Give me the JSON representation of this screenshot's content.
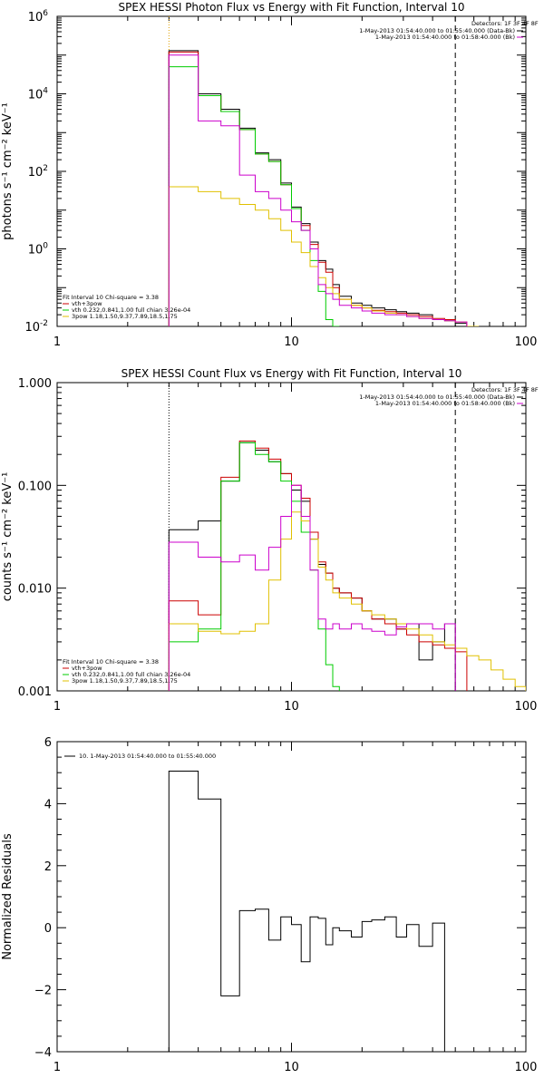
{
  "chart_data": [
    {
      "type": "line",
      "title": "SPEX HESSI Photon Flux vs Energy with Fit Function, Interval 10",
      "xlabel": "",
      "ylabel": "photons s⁻¹ cm⁻² keV⁻¹",
      "xscale": "log",
      "yscale": "log",
      "xlim": [
        1,
        100
      ],
      "ylim": [
        0.01,
        1000000
      ],
      "xticks": [
        {
          "v": 1,
          "label": "1"
        },
        {
          "v": 10,
          "label": "10"
        },
        {
          "v": 100,
          "label": "100"
        }
      ],
      "yticks": [
        {
          "v": 0.01,
          "base": "10",
          "exp": "-2"
        },
        {
          "v": 1,
          "base": "10",
          "exp": "0"
        },
        {
          "v": 100,
          "base": "10",
          "exp": "2"
        },
        {
          "v": 10000,
          "base": "10",
          "exp": "4"
        },
        {
          "v": 1000000,
          "base": "10",
          "exp": "6"
        }
      ],
      "vlines": [
        {
          "x": 3,
          "style": "dotted",
          "color": "#e0a000"
        },
        {
          "x": 50,
          "style": "dashed",
          "color": "#000000"
        }
      ],
      "detectors": "Detectors: 1F 3F 4F 8F",
      "time_labels": [
        {
          "text": "1-May-2013 01:54:40.000 to 01:55:40.000 (Data-Bk)",
          "color": "#000000"
        },
        {
          "text": "1-May-2013 01:54:40.000 to 01:58:40.000 (Bk)",
          "color": "#cc00cc"
        }
      ],
      "fit_info": [
        "Fit Interval 10   Chi-square = 3.38",
        "vth+3pow",
        "vth 0.232,0.841,1.00  full chian 3.26e-04",
        "3pow 1.18,1.50,9.37,7.89,18.5,1.75"
      ],
      "fit_colors": [
        "#000000",
        "#cc0000",
        "#00cc00",
        "#e0c000"
      ],
      "edges": [
        3,
        4,
        5,
        6,
        7,
        8,
        9,
        10,
        11,
        12,
        13,
        14,
        15,
        16,
        18,
        20,
        22,
        25,
        28,
        31,
        35,
        40,
        45,
        50,
        56,
        63
      ],
      "series": [
        {
          "name": "data",
          "color": "#000000",
          "values": [
            130000,
            10000,
            4000,
            1300,
            300,
            200,
            50,
            12,
            4.5,
            1.5,
            0.5,
            0.3,
            0.12,
            0.06,
            0.04,
            0.035,
            0.03,
            0.027,
            0.024,
            0.022,
            0.02,
            0.015,
            0.014,
            0.012,
            null
          ]
        },
        {
          "name": "vth+3pow",
          "color": "#cc0000",
          "values": [
            120000,
            9000,
            3500,
            1200,
            280,
            180,
            45,
            11,
            4,
            1.3,
            0.45,
            0.25,
            0.1,
            0.05,
            0.035,
            0.03,
            0.026,
            0.024,
            0.022,
            0.02,
            0.018,
            0.016,
            0.015,
            0.013,
            0.01
          ]
        },
        {
          "name": "vth",
          "color": "#00cc00",
          "values": [
            50000,
            9000,
            3500,
            1200,
            280,
            180,
            45,
            11,
            3,
            0.5,
            0.08,
            0.015,
            0.008,
            null,
            null,
            null,
            null,
            null,
            null,
            null,
            null,
            null,
            null,
            null,
            null
          ]
        },
        {
          "name": "3pow",
          "color": "#e0c000",
          "values": [
            40,
            30,
            20,
            14,
            10,
            6,
            3,
            1.5,
            0.8,
            0.35,
            0.18,
            0.1,
            0.07,
            0.05,
            0.035,
            0.03,
            0.025,
            0.022,
            0.02,
            0.018,
            0.016,
            0.015,
            0.014,
            0.013,
            0.01
          ]
        },
        {
          "name": "bk",
          "color": "#cc00cc",
          "values": [
            100000,
            2000,
            1500,
            80,
            30,
            20,
            10,
            5,
            3,
            1,
            0.12,
            0.07,
            0.05,
            0.035,
            0.03,
            0.025,
            0.022,
            0.02,
            0.02,
            0.018,
            0.016,
            0.015,
            0.014,
            0.013,
            null
          ]
        }
      ]
    },
    {
      "type": "line",
      "title": "SPEX HESSI Count Flux vs Energy with Fit Function, Interval 10",
      "xlabel": "",
      "ylabel": "counts s⁻¹ cm⁻² keV⁻¹",
      "xscale": "log",
      "yscale": "log",
      "xlim": [
        1,
        100
      ],
      "ylim": [
        0.001,
        1
      ],
      "xticks": [
        {
          "v": 1,
          "label": "1"
        },
        {
          "v": 10,
          "label": "10"
        },
        {
          "v": 100,
          "label": "100"
        }
      ],
      "yticks": [
        {
          "v": 1,
          "label": "1.000"
        },
        {
          "v": 0.1,
          "label": "0.100"
        },
        {
          "v": 0.01,
          "label": "0.010"
        },
        {
          "v": 0.001,
          "label": "0.001"
        }
      ],
      "vlines": [
        {
          "x": 3,
          "style": "dotted",
          "color": "#000000"
        },
        {
          "x": 50,
          "style": "dashed",
          "color": "#000000"
        }
      ],
      "detectors": "Detectors: 1F 3F 4F 8F",
      "time_labels": [
        {
          "text": "1-May-2013 01:54:40.000 to 01:55:40.000 (Data-Bk)",
          "color": "#000000"
        },
        {
          "text": "1-May-2013 01:54:40.000 to 01:58:40.000 (Bk)",
          "color": "#cc00cc"
        }
      ],
      "fit_info": [
        "Fit Interval 10   Chi-square = 3.38",
        "vth+3pow",
        "vth 0.232,0.841,1.00  full chian 3.26e-04",
        "3pow 1.18,1.50,9.37,7.89,18.5,1.75"
      ],
      "fit_colors": [
        "#000000",
        "#cc0000",
        "#00cc00",
        "#e0c000"
      ],
      "edges": [
        3,
        4,
        5,
        6,
        7,
        8,
        9,
        10,
        11,
        12,
        13,
        14,
        15,
        16,
        18,
        20,
        22,
        25,
        28,
        31,
        35,
        40,
        45,
        50,
        56,
        63,
        71,
        80,
        90,
        100
      ],
      "series": [
        {
          "name": "data",
          "color": "#000000",
          "values": [
            0.037,
            0.045,
            0.11,
            0.26,
            0.22,
            0.17,
            0.13,
            0.09,
            0.07,
            0.03,
            0.017,
            0.014,
            0.01,
            0.009,
            0.008,
            0.006,
            0.005,
            0.005,
            0.004,
            0.0045,
            0.002,
            0.003,
            0.0045,
            null,
            null,
            null,
            null,
            null,
            null
          ]
        },
        {
          "name": "vth+3pow",
          "color": "#cc0000",
          "values": [
            0.0075,
            0.0055,
            0.12,
            0.27,
            0.23,
            0.18,
            0.13,
            0.1,
            0.075,
            0.035,
            0.018,
            0.014,
            0.01,
            0.009,
            0.008,
            0.006,
            0.005,
            0.0045,
            0.004,
            0.0035,
            0.003,
            0.0028,
            0.0026,
            0.0024,
            null,
            null,
            null,
            null,
            null
          ]
        },
        {
          "name": "vth",
          "color": "#00cc00",
          "values": [
            0.003,
            0.004,
            0.11,
            0.26,
            0.2,
            0.17,
            0.11,
            0.07,
            0.035,
            0.015,
            0.004,
            0.0018,
            0.0011,
            null,
            null,
            null,
            null,
            null,
            null,
            null,
            null,
            null,
            null,
            null,
            null,
            null,
            null,
            null,
            null
          ]
        },
        {
          "name": "3pow",
          "color": "#e0c000",
          "values": [
            0.0045,
            0.0038,
            0.0036,
            0.0038,
            0.0045,
            0.012,
            0.03,
            0.055,
            0.045,
            0.03,
            0.016,
            0.012,
            0.009,
            0.008,
            0.007,
            0.006,
            0.0055,
            0.005,
            0.0045,
            0.004,
            0.0035,
            0.003,
            0.0028,
            0.0026,
            0.0022,
            0.002,
            0.0016,
            0.0013,
            0.0011
          ]
        },
        {
          "name": "bk",
          "color": "#cc00cc",
          "values": [
            0.028,
            0.02,
            0.018,
            0.021,
            0.015,
            0.025,
            0.05,
            0.1,
            0.05,
            0.015,
            0.005,
            0.004,
            0.0045,
            0.004,
            0.0045,
            0.004,
            0.0038,
            0.0035,
            0.0042,
            0.0045,
            0.0045,
            0.004,
            0.0045,
            null,
            null,
            null,
            null,
            null,
            null
          ]
        }
      ]
    },
    {
      "type": "line",
      "title": "",
      "xlabel": "",
      "ylabel": "Normalized Residuals",
      "xscale": "log",
      "yscale": "linear",
      "xlim": [
        1,
        100
      ],
      "ylim": [
        -4,
        6
      ],
      "xticks": [
        {
          "v": 1,
          "label": "1"
        },
        {
          "v": 10,
          "label": "10"
        },
        {
          "v": 100,
          "label": "100"
        }
      ],
      "yticks": [
        {
          "v": 6,
          "label": "6"
        },
        {
          "v": 4,
          "label": "4"
        },
        {
          "v": 2,
          "label": "2"
        },
        {
          "v": 0,
          "label": "0"
        },
        {
          "v": -2,
          "label": "−2"
        },
        {
          "v": -4,
          "label": "−4"
        }
      ],
      "legend": {
        "text": "10.  1-May-2013 01:54:40.000 to 01:55:40.000",
        "position": "top-left"
      },
      "edges": [
        3,
        4,
        5,
        6,
        7,
        8,
        9,
        10,
        11,
        12,
        13,
        14,
        15,
        16,
        18,
        20,
        22,
        25,
        28,
        31,
        35,
        40,
        45,
        50
      ],
      "series": [
        {
          "name": "",
          "color": "#000000",
          "values": [
            5.05,
            4.15,
            -2.2,
            0.55,
            0.6,
            -0.4,
            0.35,
            0.1,
            -1.1,
            0.35,
            0.3,
            -0.55,
            0.0,
            -0.1,
            -0.3,
            0.2,
            0.25,
            0.35,
            -0.3,
            0.1,
            -0.6,
            0.15,
            null
          ]
        }
      ]
    }
  ]
}
